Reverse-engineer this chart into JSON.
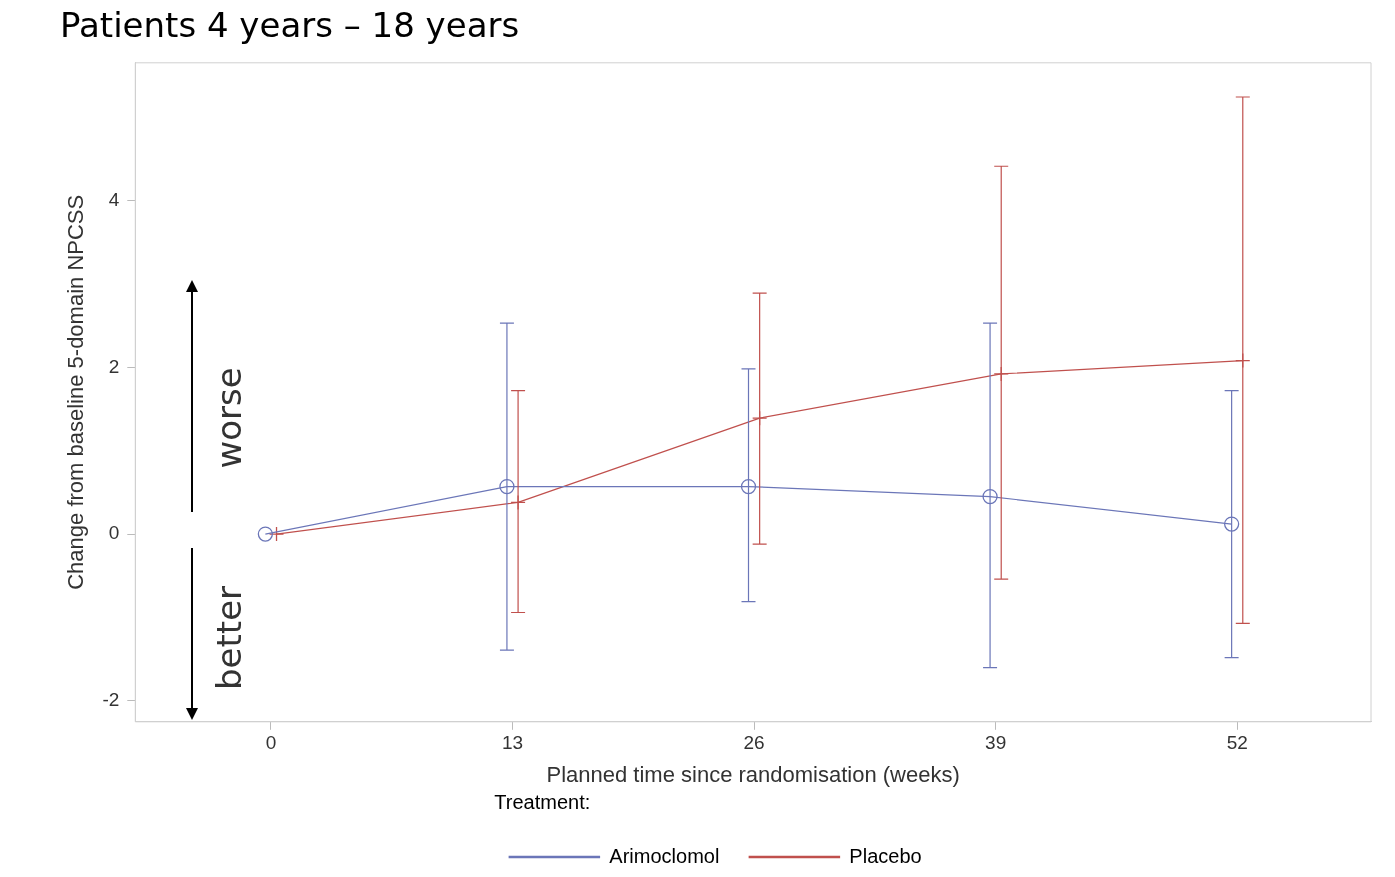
{
  "chart_data": {
    "type": "line",
    "title": "Patients 4 years – 18 years",
    "xlabel": "Planned time since randomisation (weeks)",
    "ylabel": "Change from baseline 5-domain NPCSS",
    "legend_title": "Treatment:",
    "legend": "bottom",
    "grid": false,
    "xlim": [
      -7.3,
      59.2
    ],
    "xticks": [
      {
        "value": 0,
        "label": "0"
      },
      {
        "value": 13,
        "label": "13"
      },
      {
        "value": 26,
        "label": "26"
      },
      {
        "value": 39,
        "label": "39"
      },
      {
        "value": 52,
        "label": "52"
      }
    ],
    "ylim": [
      -2.25,
      5.65
    ],
    "yticks": [
      -2,
      0,
      2,
      4
    ],
    "annotations": [
      "worse",
      "better"
    ],
    "series": [
      {
        "name": "Arimoclomol",
        "color": "#6b76b8",
        "marker": "circle",
        "x": [
          -0.3,
          12.7,
          25.7,
          38.7,
          51.7
        ],
        "values": [
          0,
          0.57,
          0.57,
          0.45,
          0.12
        ],
        "errors": [
          null,
          [
            -1.39,
            2.53
          ],
          [
            -0.81,
            1.98
          ],
          [
            -1.6,
            2.53
          ],
          [
            -1.48,
            1.72
          ]
        ]
      },
      {
        "name": "Placebo",
        "color": "#c0504d",
        "marker": "cross",
        "x": [
          0.3,
          13.3,
          26.3,
          39.3,
          52.3
        ],
        "values": [
          0,
          0.38,
          1.39,
          1.92,
          2.08
        ],
        "errors": [
          null,
          [
            -0.94,
            1.72
          ],
          [
            -0.12,
            2.89
          ],
          [
            -0.54,
            4.41
          ],
          [
            -1.07,
            5.24
          ]
        ]
      }
    ]
  }
}
